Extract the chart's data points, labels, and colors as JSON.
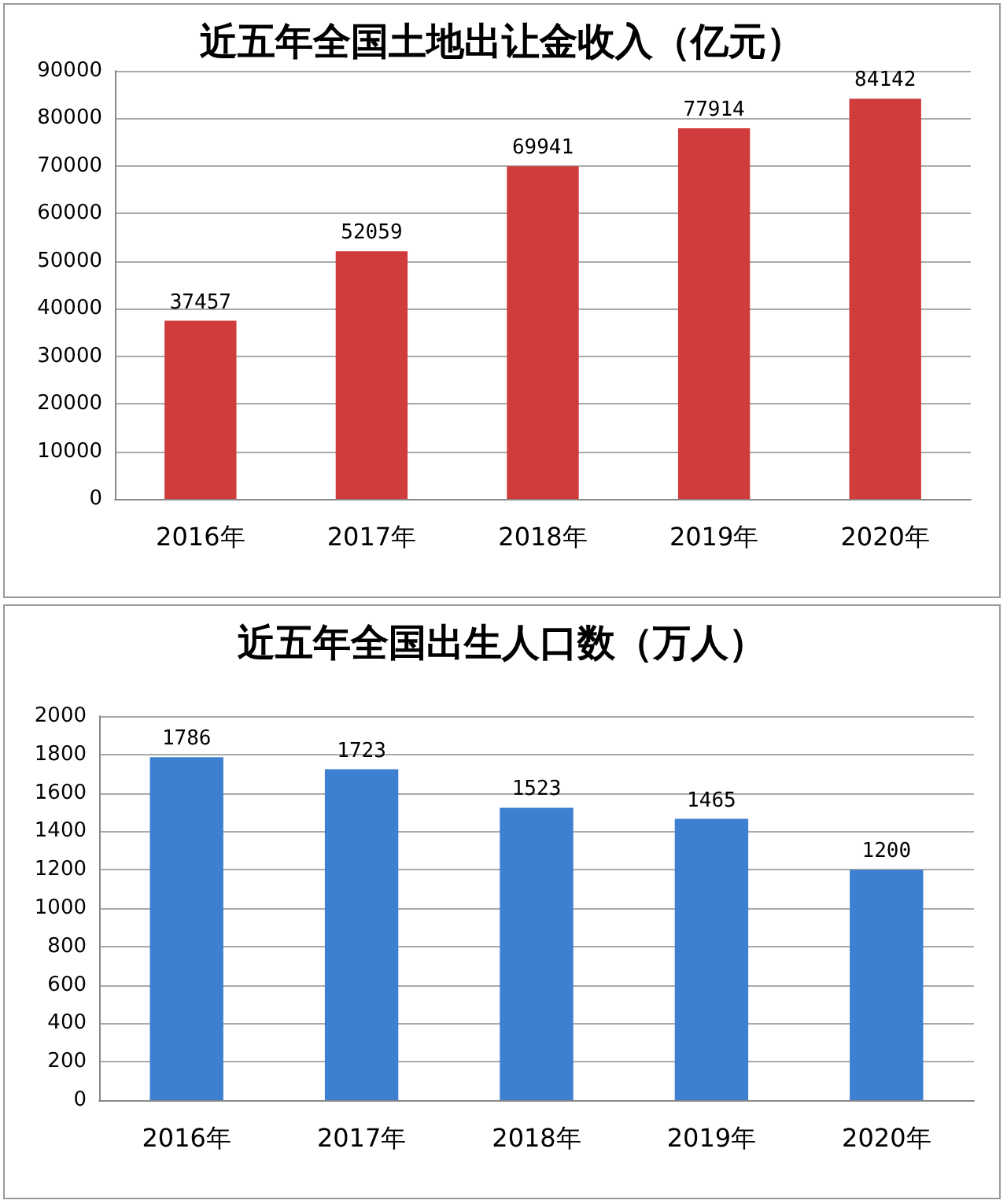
{
  "chart_data": [
    {
      "type": "bar",
      "title": "近五年全国土地出让金收入（亿元）",
      "categories": [
        "2016年",
        "2017年",
        "2018年",
        "2019年",
        "2020年"
      ],
      "values": [
        37457,
        52059,
        69941,
        77914,
        84142
      ],
      "color": "#d03c3c",
      "ylim": [
        0,
        90000
      ],
      "yticks": [
        0,
        10000,
        20000,
        30000,
        40000,
        50000,
        60000,
        70000,
        80000,
        90000
      ],
      "grid": "y",
      "data_labels": true
    },
    {
      "type": "bar",
      "title": "近五年全国出生人口数（万人）",
      "categories": [
        "2016年",
        "2017年",
        "2018年",
        "2019年",
        "2020年"
      ],
      "values": [
        1786,
        1723,
        1523,
        1465,
        1200
      ],
      "color": "#3d7fd0",
      "ylim": [
        0,
        2000
      ],
      "yticks": [
        0,
        200,
        400,
        600,
        800,
        1000,
        1200,
        1400,
        1600,
        1800,
        2000
      ],
      "grid": "y",
      "data_labels": true
    }
  ]
}
